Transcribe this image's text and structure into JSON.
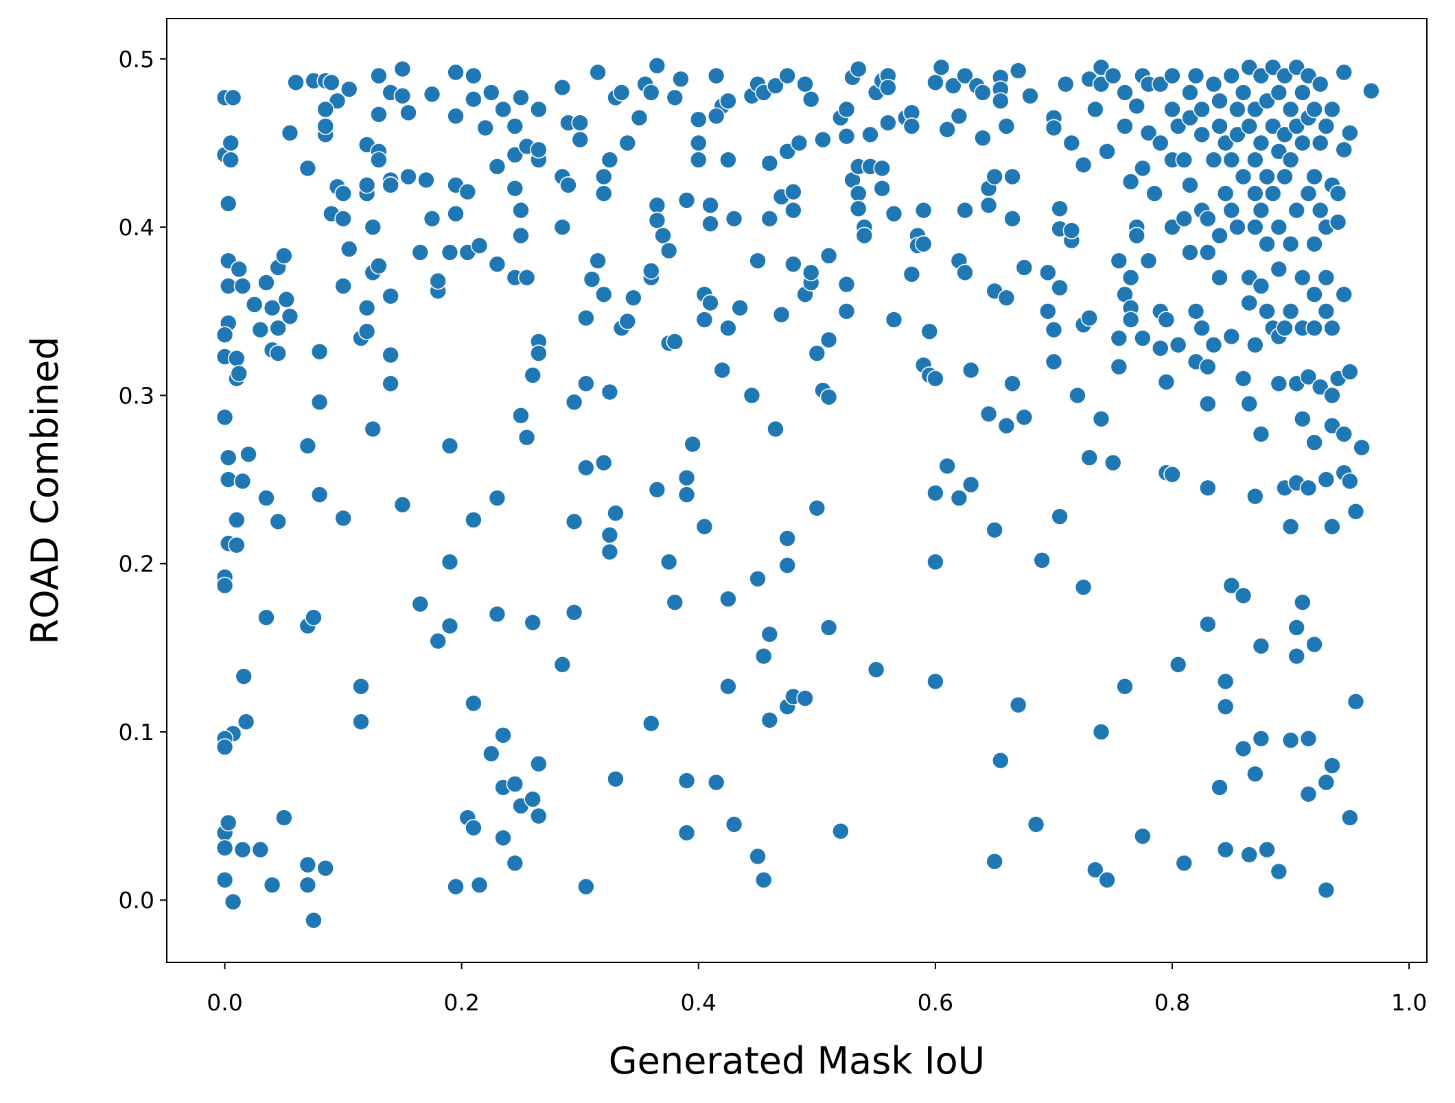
{
  "chart_data": {
    "type": "scatter",
    "xlabel": "Generated Mask IoU",
    "ylabel": "ROAD Combined",
    "color": "#1f77b4",
    "grid": false,
    "xlim": [
      -0.049,
      1.015
    ],
    "ylim": [
      -0.037,
      0.524
    ],
    "xticks": [
      {
        "value": 0,
        "label": "0.0"
      },
      0.2,
      0.4,
      0.6,
      0.8,
      {
        "value": 1,
        "label": "1.0"
      }
    ],
    "yticks": [
      {
        "value": 0,
        "label": "0.0"
      },
      0.1,
      0.2,
      0.3,
      0.4,
      0.5
    ],
    "x": [
      0.0,
      0.007,
      0.0,
      0.005,
      0.005,
      0.003,
      0.003,
      0.003,
      0.012,
      0.015,
      0.003,
      0.0,
      0.0,
      0.01,
      0.01,
      0.012,
      0.0,
      0.003,
      0.003,
      0.015,
      0.02,
      0.01,
      0.003,
      0.01,
      0.0,
      0.0,
      0.016,
      0.018,
      0.007,
      0.0,
      0.0,
      0.0,
      0.003,
      0.0,
      0.015,
      0.0,
      0.007,
      0.025,
      0.03,
      0.035,
      0.04,
      0.045,
      0.05,
      0.045,
      0.052,
      0.055,
      0.04,
      0.045,
      0.055,
      0.06,
      0.075,
      0.085,
      0.09,
      0.095,
      0.085,
      0.085,
      0.085,
      0.07,
      0.095,
      0.1,
      0.09,
      0.1,
      0.105,
      0.1,
      0.08,
      0.08,
      0.07,
      0.035,
      0.045,
      0.08,
      0.1,
      0.035,
      0.07,
      0.075,
      0.05,
      0.03,
      0.04,
      0.07,
      0.07,
      0.085,
      0.075,
      0.105,
      0.12,
      0.13,
      0.13,
      0.13,
      0.13,
      0.14,
      0.15,
      0.15,
      0.155,
      0.12,
      0.12,
      0.14,
      0.14,
      0.155,
      0.125,
      0.125,
      0.13,
      0.12,
      0.115,
      0.12,
      0.14,
      0.14,
      0.14,
      0.125,
      0.15,
      0.115,
      0.115,
      0.165,
      0.17,
      0.175,
      0.175,
      0.18,
      0.18,
      0.165,
      0.18,
      0.19,
      0.195,
      0.195,
      0.195,
      0.195,
      0.19,
      0.19,
      0.19,
      0.195,
      0.21,
      0.21,
      0.205,
      0.205,
      0.215,
      0.22,
      0.225,
      0.23,
      0.23,
      0.235,
      0.245,
      0.245,
      0.25,
      0.245,
      0.25,
      0.25,
      0.245,
      0.255,
      0.255,
      0.265,
      0.265,
      0.265,
      0.285,
      0.29,
      0.285,
      0.29,
      0.285,
      0.3,
      0.3,
      0.21,
      0.21,
      0.205,
      0.21,
      0.215,
      0.225,
      0.23,
      0.23,
      0.235,
      0.235,
      0.235,
      0.245,
      0.245,
      0.25,
      0.255,
      0.26,
      0.265,
      0.265,
      0.26,
      0.25,
      0.26,
      0.265,
      0.265,
      0.285,
      0.295,
      0.295,
      0.295,
      0.305,
      0.305,
      0.305,
      0.31,
      0.315,
      0.32,
      0.315,
      0.32,
      0.32,
      0.325,
      0.33,
      0.335,
      0.34,
      0.32,
      0.325,
      0.325,
      0.325,
      0.33,
      0.33,
      0.305,
      0.335,
      0.34,
      0.345,
      0.35,
      0.355,
      0.365,
      0.36,
      0.36,
      0.36,
      0.365,
      0.365,
      0.365,
      0.36,
      0.37,
      0.375,
      0.375,
      0.38,
      0.375,
      0.38,
      0.38,
      0.385,
      0.39,
      0.39,
      0.39,
      0.395,
      0.39,
      0.39,
      0.4,
      0.4,
      0.4,
      0.405,
      0.405,
      0.41,
      0.41,
      0.41,
      0.405,
      0.415,
      0.42,
      0.415,
      0.425,
      0.425,
      0.43,
      0.425,
      0.435,
      0.42,
      0.425,
      0.425,
      0.415,
      0.43,
      0.445,
      0.445,
      0.45,
      0.45,
      0.45,
      0.455,
      0.45,
      0.455,
      0.46,
      0.46,
      0.46,
      0.46,
      0.455,
      0.465,
      0.47,
      0.47,
      0.465,
      0.475,
      0.475,
      0.48,
      0.48,
      0.48,
      0.475,
      0.475,
      0.475,
      0.48,
      0.485,
      0.49,
      0.49,
      0.495,
      0.495,
      0.495,
      0.49,
      0.5,
      0.5,
      0.505,
      0.51,
      0.505,
      0.51,
      0.51,
      0.51,
      0.52,
      0.52,
      0.525,
      0.525,
      0.525,
      0.525,
      0.53,
      0.53,
      0.535,
      0.535,
      0.535,
      0.535,
      0.54,
      0.54,
      0.545,
      0.545,
      0.55,
      0.55,
      0.555,
      0.555,
      0.555,
      0.56,
      0.56,
      0.56,
      0.565,
      0.565,
      0.575,
      0.58,
      0.58,
      0.58,
      0.585,
      0.585,
      0.59,
      0.59,
      0.59,
      0.595,
      0.595,
      0.6,
      0.6,
      0.6,
      0.6,
      0.6,
      0.605,
      0.61,
      0.61,
      0.615,
      0.62,
      0.62,
      0.62,
      0.625,
      0.625,
      0.625,
      0.63,
      0.63,
      0.635,
      0.64,
      0.64,
      0.645,
      0.645,
      0.645,
      0.65,
      0.65,
      0.65,
      0.65,
      0.655,
      0.655,
      0.655,
      0.66,
      0.66,
      0.66,
      0.655,
      0.665,
      0.665,
      0.665,
      0.67,
      0.675,
      0.675,
      0.67,
      0.68,
      0.685,
      0.69,
      0.695,
      0.695,
      0.7,
      0.7,
      0.7,
      0.7,
      0.705,
      0.705,
      0.705,
      0.705,
      0.71,
      0.715,
      0.715,
      0.715,
      0.72,
      0.725,
      0.725,
      0.725,
      0.73,
      0.73,
      0.73,
      0.735,
      0.735,
      0.74,
      0.74,
      0.74,
      0.74,
      0.745,
      0.745,
      0.75,
      0.75,
      0.755,
      0.755,
      0.755,
      0.76,
      0.76,
      0.76,
      0.76,
      0.765,
      0.765,
      0.765,
      0.765,
      0.77,
      0.77,
      0.77,
      0.775,
      0.775,
      0.775,
      0.775,
      0.78,
      0.78,
      0.78,
      0.785,
      0.79,
      0.79,
      0.79,
      0.79,
      0.795,
      0.795,
      0.795,
      0.8,
      0.8,
      0.8,
      0.8,
      0.8,
      0.805,
      0.805,
      0.805,
      0.81,
      0.81,
      0.81,
      0.815,
      0.815,
      0.815,
      0.815,
      0.82,
      0.82,
      0.82,
      0.825,
      0.825,
      0.825,
      0.825,
      0.83,
      0.83,
      0.83,
      0.83,
      0.83,
      0.83,
      0.835,
      0.835,
      0.835,
      0.84,
      0.84,
      0.84,
      0.84,
      0.84,
      0.845,
      0.845,
      0.845,
      0.845,
      0.845,
      0.85,
      0.85,
      0.85,
      0.85,
      0.85,
      0.855,
      0.855,
      0.855,
      0.86,
      0.86,
      0.86,
      0.86,
      0.86,
      0.865,
      0.865,
      0.865,
      0.865,
      0.865,
      0.865,
      0.87,
      0.87,
      0.87,
      0.87,
      0.87,
      0.87,
      0.87,
      0.875,
      0.875,
      0.875,
      0.875,
      0.875,
      0.875,
      0.875,
      0.88,
      0.88,
      0.88,
      0.88,
      0.88,
      0.885,
      0.885,
      0.885,
      0.885,
      0.89,
      0.89,
      0.89,
      0.89,
      0.89,
      0.89,
      0.89,
      0.895,
      0.895,
      0.895,
      0.895,
      0.895,
      0.9,
      0.9,
      0.9,
      0.9,
      0.9,
      0.9,
      0.905,
      0.905,
      0.905,
      0.905,
      0.905,
      0.905,
      0.905,
      0.91,
      0.91,
      0.91,
      0.91,
      0.91,
      0.91,
      0.915,
      0.915,
      0.915,
      0.915,
      0.915,
      0.915,
      0.915,
      0.92,
      0.92,
      0.92,
      0.92,
      0.92,
      0.92,
      0.92,
      0.925,
      0.925,
      0.925,
      0.925,
      0.93,
      0.93,
      0.93,
      0.93,
      0.93,
      0.93,
      0.93,
      0.935,
      0.935,
      0.935,
      0.935,
      0.935,
      0.935,
      0.935,
      0.94,
      0.94,
      0.94,
      0.945,
      0.945,
      0.945,
      0.945,
      0.945,
      0.95,
      0.95,
      0.95,
      0.95,
      0.955,
      0.955,
      0.96,
      0.968
    ],
    "values": [
      0.477,
      0.477,
      0.443,
      0.44,
      0.45,
      0.414,
      0.38,
      0.365,
      0.375,
      0.365,
      0.343,
      0.336,
      0.323,
      0.322,
      0.31,
      0.313,
      0.287,
      0.263,
      0.25,
      0.249,
      0.265,
      0.226,
      0.212,
      0.211,
      0.192,
      0.187,
      0.133,
      0.106,
      0.099,
      0.096,
      0.091,
      0.04,
      0.046,
      0.031,
      0.03,
      0.012,
      -0.001,
      0.354,
      0.339,
      0.367,
      0.352,
      0.376,
      0.383,
      0.34,
      0.357,
      0.347,
      0.327,
      0.325,
      0.456,
      0.486,
      0.487,
      0.487,
      0.486,
      0.475,
      0.47,
      0.455,
      0.46,
      0.435,
      0.424,
      0.42,
      0.408,
      0.405,
      0.387,
      0.365,
      0.326,
      0.296,
      0.27,
      0.239,
      0.225,
      0.241,
      0.227,
      0.168,
      0.163,
      0.168,
      0.049,
      0.03,
      0.009,
      0.021,
      0.009,
      0.019,
      -0.012,
      0.482,
      0.449,
      0.445,
      0.44,
      0.467,
      0.49,
      0.48,
      0.494,
      0.478,
      0.468,
      0.42,
      0.425,
      0.428,
      0.425,
      0.43,
      0.4,
      0.373,
      0.377,
      0.352,
      0.334,
      0.338,
      0.359,
      0.324,
      0.307,
      0.28,
      0.235,
      0.127,
      0.106,
      0.385,
      0.428,
      0.405,
      0.479,
      0.362,
      0.368,
      0.176,
      0.154,
      0.385,
      0.492,
      0.466,
      0.425,
      0.408,
      0.27,
      0.201,
      0.163,
      0.008,
      0.49,
      0.476,
      0.421,
      0.385,
      0.389,
      0.459,
      0.48,
      0.436,
      0.378,
      0.47,
      0.46,
      0.443,
      0.477,
      0.423,
      0.41,
      0.395,
      0.37,
      0.37,
      0.448,
      0.47,
      0.44,
      0.446,
      0.483,
      0.462,
      0.43,
      0.425,
      0.4,
      0.452,
      0.462,
      0.226,
      0.117,
      0.049,
      0.043,
      0.009,
      0.087,
      0.239,
      0.17,
      0.098,
      0.067,
      0.037,
      0.069,
      0.022,
      0.288,
      0.275,
      0.312,
      0.332,
      0.325,
      0.165,
      0.056,
      0.06,
      0.05,
      0.081,
      0.14,
      0.296,
      0.225,
      0.171,
      0.307,
      0.257,
      0.346,
      0.369,
      0.38,
      0.36,
      0.492,
      0.43,
      0.42,
      0.44,
      0.477,
      0.48,
      0.45,
      0.26,
      0.302,
      0.217,
      0.207,
      0.23,
      0.072,
      0.008,
      0.34,
      0.344,
      0.358,
      0.465,
      0.485,
      0.496,
      0.48,
      0.37,
      0.374,
      0.413,
      0.404,
      0.244,
      0.105,
      0.395,
      0.386,
      0.331,
      0.332,
      0.201,
      0.177,
      0.477,
      0.488,
      0.416,
      0.251,
      0.241,
      0.271,
      0.071,
      0.04,
      0.464,
      0.45,
      0.44,
      0.36,
      0.345,
      0.413,
      0.402,
      0.355,
      0.222,
      0.49,
      0.472,
      0.466,
      0.475,
      0.44,
      0.405,
      0.34,
      0.352,
      0.315,
      0.179,
      0.127,
      0.07,
      0.045,
      0.3,
      0.478,
      0.485,
      0.38,
      0.191,
      0.145,
      0.026,
      0.48,
      0.438,
      0.405,
      0.158,
      0.107,
      0.012,
      0.484,
      0.418,
      0.348,
      0.28,
      0.49,
      0.445,
      0.421,
      0.41,
      0.378,
      0.215,
      0.199,
      0.115,
      0.121,
      0.45,
      0.36,
      0.12,
      0.367,
      0.373,
      0.476,
      0.485,
      0.325,
      0.233,
      0.303,
      0.299,
      0.452,
      0.383,
      0.333,
      0.162,
      0.465,
      0.041,
      0.47,
      0.454,
      0.366,
      0.35,
      0.489,
      0.428,
      0.494,
      0.436,
      0.42,
      0.411,
      0.4,
      0.395,
      0.455,
      0.436,
      0.48,
      0.137,
      0.487,
      0.435,
      0.423,
      0.462,
      0.49,
      0.483,
      0.408,
      0.345,
      0.465,
      0.468,
      0.46,
      0.372,
      0.395,
      0.389,
      0.41,
      0.39,
      0.318,
      0.338,
      0.312,
      0.31,
      0.242,
      0.201,
      0.13,
      0.486,
      0.495,
      0.458,
      0.258,
      0.484,
      0.466,
      0.38,
      0.239,
      0.49,
      0.41,
      0.373,
      0.315,
      0.247,
      0.484,
      0.48,
      0.453,
      0.289,
      0.413,
      0.423,
      0.43,
      0.362,
      0.22,
      0.023,
      0.489,
      0.482,
      0.475,
      0.46,
      0.358,
      0.282,
      0.083,
      0.307,
      0.43,
      0.405,
      0.493,
      0.376,
      0.287,
      0.116,
      0.478,
      0.045,
      0.202,
      0.35,
      0.373,
      0.465,
      0.459,
      0.339,
      0.32,
      0.399,
      0.411,
      0.228,
      0.364,
      0.485,
      0.45,
      0.392,
      0.398,
      0.3,
      0.342,
      0.437,
      0.186,
      0.346,
      0.263,
      0.488,
      0.47,
      0.018,
      0.495,
      0.485,
      0.286,
      0.1,
      0.012,
      0.445,
      0.26,
      0.49,
      0.38,
      0.334,
      0.317,
      0.36,
      0.48,
      0.46,
      0.127,
      0.427,
      0.37,
      0.352,
      0.345,
      0.472,
      0.4,
      0.395,
      0.435,
      0.49,
      0.334,
      0.038,
      0.38,
      0.456,
      0.485,
      0.42,
      0.45,
      0.485,
      0.328,
      0.35,
      0.345,
      0.254,
      0.308,
      0.253,
      0.47,
      0.44,
      0.4,
      0.49,
      0.46,
      0.33,
      0.14,
      0.44,
      0.405,
      0.022,
      0.48,
      0.465,
      0.425,
      0.385,
      0.35,
      0.32,
      0.49,
      0.47,
      0.455,
      0.41,
      0.34,
      0.317,
      0.295,
      0.245,
      0.164,
      0.405,
      0.385,
      0.485,
      0.44,
      0.33,
      0.475,
      0.46,
      0.395,
      0.37,
      0.067,
      0.42,
      0.45,
      0.13,
      0.115,
      0.03,
      0.49,
      0.44,
      0.41,
      0.335,
      0.187,
      0.47,
      0.455,
      0.4,
      0.48,
      0.43,
      0.31,
      0.181,
      0.09,
      0.495,
      0.46,
      0.37,
      0.355,
      0.295,
      0.027,
      0.47,
      0.44,
      0.42,
      0.4,
      0.33,
      0.24,
      0.075,
      0.49,
      0.45,
      0.41,
      0.365,
      0.277,
      0.151,
      0.096,
      0.475,
      0.43,
      0.39,
      0.35,
      0.03,
      0.495,
      0.46,
      0.42,
      0.34,
      0.48,
      0.445,
      0.4,
      0.375,
      0.335,
      0.307,
      0.017,
      0.49,
      0.455,
      0.43,
      0.34,
      0.245,
      0.47,
      0.44,
      0.39,
      0.35,
      0.095,
      0.222,
      0.495,
      0.46,
      0.41,
      0.307,
      0.248,
      0.162,
      0.145,
      0.48,
      0.45,
      0.37,
      0.34,
      0.286,
      0.177,
      0.49,
      0.465,
      0.42,
      0.311,
      0.245,
      0.096,
      0.063,
      0.47,
      0.43,
      0.39,
      0.36,
      0.34,
      0.272,
      0.152,
      0.485,
      0.45,
      0.41,
      0.305,
      0.46,
      0.4,
      0.37,
      0.35,
      0.25,
      0.07,
      0.006,
      0.47,
      0.425,
      0.34,
      0.3,
      0.282,
      0.222,
      0.08,
      0.42,
      0.403,
      0.31,
      0.36,
      0.492,
      0.277,
      0.254,
      0.446,
      0.456,
      0.249,
      0.049,
      0.314,
      0.231,
      0.118,
      0.269,
      0.481
    ]
  }
}
